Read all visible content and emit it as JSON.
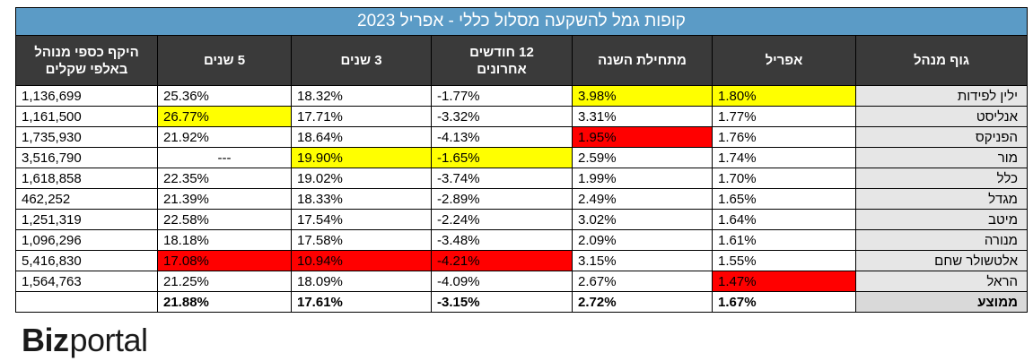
{
  "table": {
    "title": "קופות גמל להשקעה מסלול כללי - אפריל 2023",
    "headers": {
      "manager": "גוף מנהל",
      "april": "אפריל",
      "ytd": "מתחילת השנה",
      "m12_line1": "12 חודשים",
      "m12_line2": "אחרונים",
      "y3": "3 שנים",
      "y5": "5 שנים",
      "aum_line1": "היקף כספי מנוהל",
      "aum_line2": "באלפי שקלים"
    },
    "rows": [
      {
        "name": "ילין לפידות",
        "april": "1.80%",
        "ytd": "3.98%",
        "m12": "-1.77%",
        "y3": "18.32%",
        "y5": "25.36%",
        "aum": "1,136,699"
      },
      {
        "name": "אנליסט",
        "april": "1.77%",
        "ytd": "3.31%",
        "m12": "-3.32%",
        "y3": "17.71%",
        "y5": "26.77%",
        "aum": "1,161,500"
      },
      {
        "name": "הפניקס",
        "april": "1.76%",
        "ytd": "1.95%",
        "m12": "-4.13%",
        "y3": "18.64%",
        "y5": "21.92%",
        "aum": "1,735,930"
      },
      {
        "name": "מור",
        "april": "1.74%",
        "ytd": "2.59%",
        "m12": "-1.65%",
        "y3": "19.90%",
        "y5": "---",
        "aum": "3,516,790"
      },
      {
        "name": "כלל",
        "april": "1.70%",
        "ytd": "1.99%",
        "m12": "-3.74%",
        "y3": "19.02%",
        "y5": "22.35%",
        "aum": "1,618,858"
      },
      {
        "name": "מגדל",
        "april": "1.65%",
        "ytd": "2.49%",
        "m12": "-2.89%",
        "y3": "18.33%",
        "y5": "21.39%",
        "aum": "462,252"
      },
      {
        "name": "מיטב",
        "april": "1.64%",
        "ytd": "3.02%",
        "m12": "-2.24%",
        "y3": "17.54%",
        "y5": "22.58%",
        "aum": "1,251,319"
      },
      {
        "name": "מנורה",
        "april": "1.61%",
        "ytd": "2.09%",
        "m12": "-3.48%",
        "y3": "17.58%",
        "y5": "18.18%",
        "aum": "1,096,296"
      },
      {
        "name": "אלטשולר שחם",
        "april": "1.55%",
        "ytd": "3.15%",
        "m12": "-4.21%",
        "y3": "10.94%",
        "y5": "17.08%",
        "aum": "5,416,830"
      },
      {
        "name": "הראל",
        "april": "1.47%",
        "ytd": "2.67%",
        "m12": "-4.09%",
        "y3": "18.09%",
        "y5": "21.25%",
        "aum": "1,564,763"
      }
    ],
    "average": {
      "name": "ממוצע",
      "april": "1.67%",
      "ytd": "2.72%",
      "m12": "-3.15%",
      "y3": "17.61%",
      "y5": "21.88%",
      "aum": ""
    }
  },
  "highlights": {
    "yellow": "#ffff00",
    "red": "#ff0000",
    "cells": [
      {
        "row": 0,
        "col": "april",
        "color": "yellow"
      },
      {
        "row": 0,
        "col": "ytd",
        "color": "yellow"
      },
      {
        "row": 1,
        "col": "y5",
        "color": "yellow"
      },
      {
        "row": 2,
        "col": "ytd",
        "color": "red"
      },
      {
        "row": 3,
        "col": "y3",
        "color": "yellow"
      },
      {
        "row": 3,
        "col": "m12",
        "color": "yellow"
      },
      {
        "row": 8,
        "col": "y5",
        "color": "red"
      },
      {
        "row": 8,
        "col": "y3",
        "color": "red"
      },
      {
        "row": 8,
        "col": "m12",
        "color": "red"
      },
      {
        "row": 9,
        "col": "april",
        "color": "red"
      }
    ]
  },
  "logo": {
    "part1": "Biz",
    "part2": "portal"
  }
}
